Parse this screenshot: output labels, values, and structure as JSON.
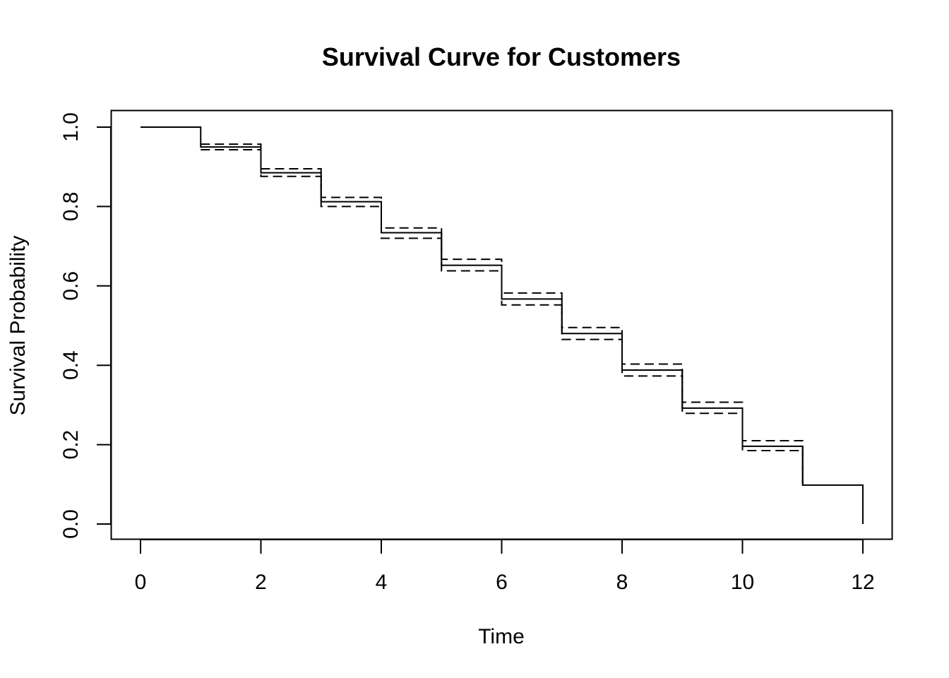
{
  "chart_data": {
    "type": "line",
    "title": "Survival Curve for Customers",
    "xlabel": "Time",
    "ylabel": "Survival Probability",
    "xlim": [
      0,
      12
    ],
    "ylim": [
      0,
      1
    ],
    "x_ticks": [
      "0",
      "2",
      "4",
      "6",
      "8",
      "10",
      "12"
    ],
    "y_ticks": [
      "0.0",
      "0.2",
      "0.4",
      "0.6",
      "0.8",
      "1.0"
    ],
    "step": true,
    "grid": false,
    "series": [
      {
        "role": "estimate",
        "line_style": "solid",
        "x": [
          0,
          1,
          2,
          3,
          4,
          5,
          6,
          7,
          8,
          9,
          10,
          11,
          12
        ],
        "y": [
          1.0,
          0.95,
          0.885,
          0.812,
          0.734,
          0.652,
          0.567,
          0.48,
          0.388,
          0.292,
          0.196,
          0.098,
          0.0
        ]
      },
      {
        "role": "upper confidence limit",
        "line_style": "dashed",
        "x": [
          1,
          2,
          3,
          4,
          5,
          6,
          7,
          8,
          9,
          10,
          11
        ],
        "y": [
          0.957,
          0.895,
          0.823,
          0.746,
          0.667,
          0.582,
          0.495,
          0.403,
          0.307,
          0.21,
          0.098
        ]
      },
      {
        "role": "lower confidence limit",
        "line_style": "dashed",
        "x": [
          1,
          2,
          3,
          4,
          5,
          6,
          7,
          8,
          9,
          10,
          11
        ],
        "y": [
          0.943,
          0.876,
          0.8,
          0.72,
          0.638,
          0.552,
          0.465,
          0.373,
          0.279,
          0.185,
          0.098
        ]
      }
    ],
    "colors": {
      "line": "#000000",
      "background": "#ffffff"
    }
  }
}
